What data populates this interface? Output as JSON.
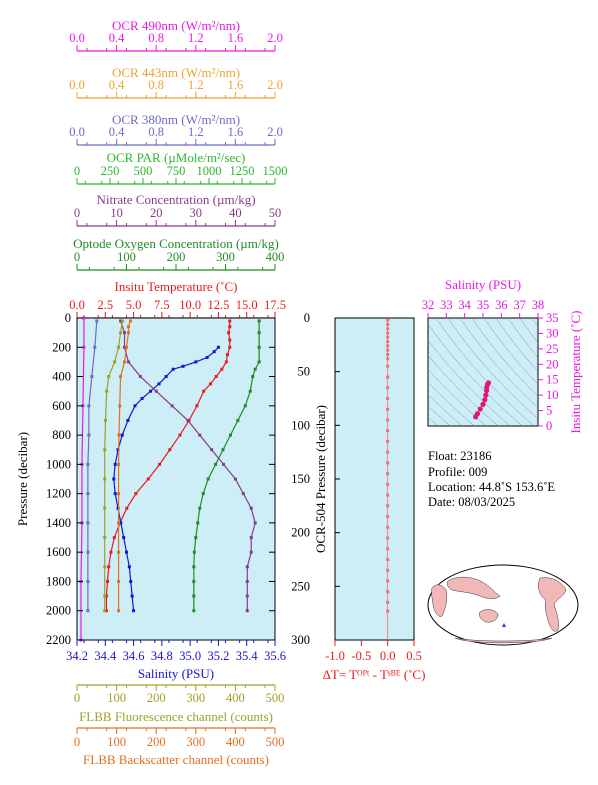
{
  "colors": {
    "ocr490": "#e619e6",
    "ocr443": "#f0a030",
    "ocr380": "#6b6bc8",
    "par": "#2ab82a",
    "nitrate": "#8b3a8b",
    "oxygen": "#238b23",
    "temperature": "#e81c1c",
    "salinity": "#1414d2",
    "fluorescence": "#a0a028",
    "backscatter": "#e0701e",
    "panel_bg": "#cdeef7",
    "dt_points": "#f07070",
    "ts_points": "#e0187a",
    "map_land": "#f2b8b8",
    "map_ocean": "#ffffff",
    "float_marker": "#2040d0"
  },
  "axes": {
    "ocr490": {
      "label": "OCR 490nm (W/m²/nm)",
      "ticks": [
        "0.0",
        "0.4",
        "0.8",
        "1.2",
        "1.6",
        "2.0"
      ]
    },
    "ocr443": {
      "label": "OCR 443nm (W/m²/nm)",
      "ticks": [
        "0.0",
        "0.4",
        "0.8",
        "1.2",
        "1.6",
        "2.0"
      ]
    },
    "ocr380": {
      "label": "OCR 380nm (W/m²/nm)",
      "ticks": [
        "0.0",
        "0.4",
        "0.8",
        "1.2",
        "1.6",
        "2.0"
      ]
    },
    "par": {
      "label": "OCR PAR (µMole/m²/sec)",
      "ticks": [
        "0",
        "250",
        "500",
        "750",
        "1000",
        "1250",
        "1500"
      ]
    },
    "nitrate": {
      "label": "Nitrate Concentration (µm/kg)",
      "ticks": [
        "0",
        "10",
        "20",
        "30",
        "40",
        "50"
      ]
    },
    "oxygen": {
      "label": "Optode Oxygen Concentration (µm/kg)",
      "ticks": [
        "0",
        "100",
        "200",
        "300",
        "400"
      ]
    },
    "temperature": {
      "label": "Insitu Temperature (˚C)",
      "ticks": [
        "0.0",
        "2.5",
        "5.0",
        "7.5",
        "10.0",
        "12.5",
        "15.0",
        "17.5"
      ]
    },
    "salinity": {
      "label": "Salinity (PSU)",
      "ticks": [
        "34.2",
        "34.4",
        "34.6",
        "34.8",
        "35.0",
        "35.2",
        "35.4",
        "35.6"
      ]
    },
    "fluorescence": {
      "label": "FLBB Fluorescence channel (counts)",
      "ticks": [
        "0",
        "100",
        "200",
        "300",
        "400",
        "500"
      ]
    },
    "backscatter": {
      "label": "FLBB Backscatter channel (counts)",
      "ticks": [
        "0",
        "100",
        "200",
        "300",
        "400",
        "500"
      ]
    },
    "pressure": {
      "label": "Pressure (decibar)",
      "ticks": [
        "0",
        "200",
        "400",
        "600",
        "800",
        "1000",
        "1200",
        "1400",
        "1600",
        "1800",
        "2000",
        "2200"
      ]
    },
    "ocr_pressure": {
      "label": "OCR-504 Pressure (decibar)",
      "ticks": [
        "0",
        "50",
        "100",
        "150",
        "200",
        "250",
        "300"
      ]
    },
    "dt": {
      "label": "ΔT= Tᴼᴾᵗ - Tˢᴮᴱ (˚C)",
      "ticks": [
        "-1.0",
        "-0.5",
        "0.0",
        "0.5"
      ]
    },
    "ts_salinity": {
      "label": "Salinity (PSU)",
      "ticks": [
        "32",
        "33",
        "34",
        "35",
        "36",
        "37",
        "38"
      ]
    },
    "ts_temperature": {
      "label": "Insitu Temperature (˚C)",
      "ticks": [
        "0",
        "5",
        "10",
        "15",
        "20",
        "25",
        "30",
        "35"
      ]
    }
  },
  "info": {
    "float": "Float:  23186",
    "profile": "Profile:  009",
    "location": "Location:  44.8˚S  153.6˚E",
    "date": "Date:  08/03/2025"
  },
  "chart_data": [
    {
      "type": "line",
      "title": "",
      "ylabel": "Pressure (decibar)",
      "ylim": [
        2200,
        0
      ],
      "series": [
        {
          "name": "Insitu Temperature (˚C)",
          "x_range": [
            0,
            17.5
          ],
          "points": [
            [
              13.5,
              20
            ],
            [
              13.5,
              60
            ],
            [
              13.4,
              100
            ],
            [
              13.5,
              150
            ],
            [
              13.5,
              200
            ],
            [
              13.3,
              250
            ],
            [
              13.2,
              300
            ],
            [
              12.8,
              350
            ],
            [
              12.3,
              400
            ],
            [
              11.8,
              450
            ],
            [
              11.2,
              500
            ],
            [
              10.6,
              600
            ],
            [
              9.9,
              700
            ],
            [
              9.1,
              800
            ],
            [
              8.2,
              900
            ],
            [
              7.3,
              1000
            ],
            [
              6.3,
              1100
            ],
            [
              5.2,
              1200
            ],
            [
              4.4,
              1300
            ],
            [
              3.8,
              1400
            ],
            [
              3.3,
              1500
            ],
            [
              3.0,
              1600
            ],
            [
              2.8,
              1700
            ],
            [
              2.7,
              1800
            ],
            [
              2.6,
              1900
            ],
            [
              2.6,
              2000
            ]
          ]
        },
        {
          "name": "Salinity (PSU)",
          "x_range": [
            34.2,
            35.6
          ],
          "points": [
            [
              35.2,
              200
            ],
            [
              35.17,
              230
            ],
            [
              35.12,
              270
            ],
            [
              35.04,
              300
            ],
            [
              34.95,
              330
            ],
            [
              34.88,
              350
            ],
            [
              34.83,
              400
            ],
            [
              34.78,
              450
            ],
            [
              34.72,
              500
            ],
            [
              34.66,
              550
            ],
            [
              34.61,
              600
            ],
            [
              34.56,
              700
            ],
            [
              34.52,
              800
            ],
            [
              34.49,
              900
            ],
            [
              34.47,
              1000
            ],
            [
              34.46,
              1100
            ],
            [
              34.47,
              1200
            ],
            [
              34.49,
              1300
            ],
            [
              34.51,
              1400
            ],
            [
              34.53,
              1500
            ],
            [
              34.55,
              1600
            ],
            [
              34.57,
              1700
            ],
            [
              34.58,
              1800
            ],
            [
              34.59,
              1900
            ],
            [
              34.6,
              2000
            ]
          ]
        },
        {
          "name": "Optode Oxygen Concentration (µm/kg)",
          "x_range": [
            0,
            400
          ],
          "points": [
            [
              368,
              20
            ],
            [
              368,
              100
            ],
            [
              368,
              200
            ],
            [
              368,
              300
            ],
            [
              360,
              350
            ],
            [
              355,
              400
            ],
            [
              350,
              500
            ],
            [
              340,
              600
            ],
            [
              325,
              700
            ],
            [
              310,
              800
            ],
            [
              295,
              900
            ],
            [
              280,
              1000
            ],
            [
              265,
              1100
            ],
            [
              255,
              1200
            ],
            [
              248,
              1300
            ],
            [
              244,
              1400
            ],
            [
              240,
              1500
            ],
            [
              237,
              1600
            ],
            [
              236,
              1700
            ],
            [
              236,
              1800
            ],
            [
              236,
              1900
            ],
            [
              236,
              2000
            ]
          ]
        },
        {
          "name": "Nitrate Concentration (µm/kg)",
          "x_range": [
            0,
            50
          ],
          "points": [
            [
              11,
              20
            ],
            [
              12,
              100
            ],
            [
              12,
              200
            ],
            [
              13,
              300
            ],
            [
              16,
              400
            ],
            [
              20,
              500
            ],
            [
              24,
              600
            ],
            [
              28,
              700
            ],
            [
              31,
              800
            ],
            [
              34,
              900
            ],
            [
              37,
              1000
            ],
            [
              40,
              1100
            ],
            [
              42,
              1200
            ],
            [
              44,
              1300
            ],
            [
              45,
              1400
            ],
            [
              44,
              1500
            ],
            [
              44,
              1600
            ],
            [
              43,
              1700
            ],
            [
              43,
              1800
            ],
            [
              43,
              1900
            ],
            [
              43,
              2000
            ]
          ]
        },
        {
          "name": "OCR 490nm (W/m²/nm)",
          "x_range": [
            0,
            2
          ],
          "points": [
            [
              0.07,
              0
            ],
            [
              0.07,
              200
            ],
            [
              0.06,
              600
            ],
            [
              0.05,
              1000
            ],
            [
              0.05,
              1400
            ],
            [
              0.04,
              1800
            ],
            [
              0.04,
              2200
            ]
          ]
        },
        {
          "name": "FLBB Fluorescence channel (counts)",
          "x_range": [
            0,
            500
          ],
          "points": [
            [
              115,
              20
            ],
            [
              110,
              100
            ],
            [
              105,
              200
            ],
            [
              95,
              300
            ],
            [
              80,
              400
            ],
            [
              75,
              500
            ],
            [
              72,
              700
            ],
            [
              70,
              900
            ],
            [
              70,
              1100
            ],
            [
              70,
              1300
            ],
            [
              70,
              1500
            ],
            [
              70,
              1700
            ],
            [
              70,
              1900
            ],
            [
              70,
              2000
            ]
          ]
        },
        {
          "name": "FLBB Backscatter channel (counts)",
          "x_range": [
            0,
            500
          ],
          "points": [
            [
              135,
              20
            ],
            [
              130,
              60
            ],
            [
              130,
              100
            ],
            [
              125,
              200
            ],
            [
              120,
              300
            ],
            [
              110,
              400
            ],
            [
              108,
              600
            ],
            [
              106,
              800
            ],
            [
              105,
              1000
            ],
            [
              105,
              1200
            ],
            [
              105,
              1400
            ],
            [
              105,
              1600
            ],
            [
              105,
              1800
            ],
            [
              105,
              2000
            ]
          ]
        },
        {
          "name": "OCR 380nm (W/m²/nm)",
          "x_range": [
            0,
            2
          ],
          "points": [
            [
              0.2,
              20
            ],
            [
              0.18,
              200
            ],
            [
              0.15,
              400
            ],
            [
              0.12,
              600
            ],
            [
              0.12,
              800
            ],
            [
              0.11,
              1000
            ],
            [
              0.11,
              1200
            ],
            [
              0.11,
              1400
            ],
            [
              0.11,
              1600
            ],
            [
              0.11,
              1800
            ],
            [
              0.11,
              2000
            ]
          ]
        }
      ]
    },
    {
      "type": "scatter",
      "xlabel": "ΔT= Tᴼᴾᵗ - Tˢᴮᴱ (˚C)",
      "ylabel": "OCR-504 Pressure (decibar)",
      "xlim": [
        -1.0,
        0.5
      ],
      "ylim": [
        300,
        0
      ],
      "points": [
        [
          0,
          2
        ],
        [
          0,
          6
        ],
        [
          0,
          10
        ],
        [
          0,
          14
        ],
        [
          0,
          18
        ],
        [
          0,
          22
        ],
        [
          0,
          26
        ],
        [
          0,
          30
        ],
        [
          0,
          34
        ],
        [
          0,
          38
        ],
        [
          0,
          45
        ],
        [
          0,
          55
        ],
        [
          0,
          65
        ],
        [
          0,
          75
        ],
        [
          0,
          85
        ],
        [
          0,
          95
        ],
        [
          0,
          105
        ],
        [
          0,
          115
        ],
        [
          0,
          125
        ],
        [
          0,
          135
        ],
        [
          0,
          145
        ],
        [
          0,
          155
        ],
        [
          0,
          165
        ],
        [
          0,
          175
        ],
        [
          0,
          185
        ],
        [
          0,
          195
        ],
        [
          0,
          205
        ],
        [
          0,
          215
        ],
        [
          0,
          225
        ],
        [
          0,
          235
        ],
        [
          0,
          245
        ],
        [
          0,
          255
        ],
        [
          0,
          265
        ],
        [
          0,
          273
        ]
      ]
    },
    {
      "type": "scatter",
      "xlabel": "Salinity (PSU)",
      "ylabel": "Insitu Temperature (˚C)",
      "xlim": [
        32,
        38
      ],
      "ylim": [
        0,
        35
      ],
      "points": [
        [
          34.6,
          3
        ],
        [
          34.7,
          4
        ],
        [
          34.85,
          5.5
        ],
        [
          35.0,
          7
        ],
        [
          35.1,
          8.5
        ],
        [
          35.15,
          10
        ],
        [
          35.2,
          11.5
        ],
        [
          35.2,
          12.5
        ],
        [
          35.25,
          13.5
        ],
        [
          35.3,
          14
        ]
      ]
    }
  ]
}
